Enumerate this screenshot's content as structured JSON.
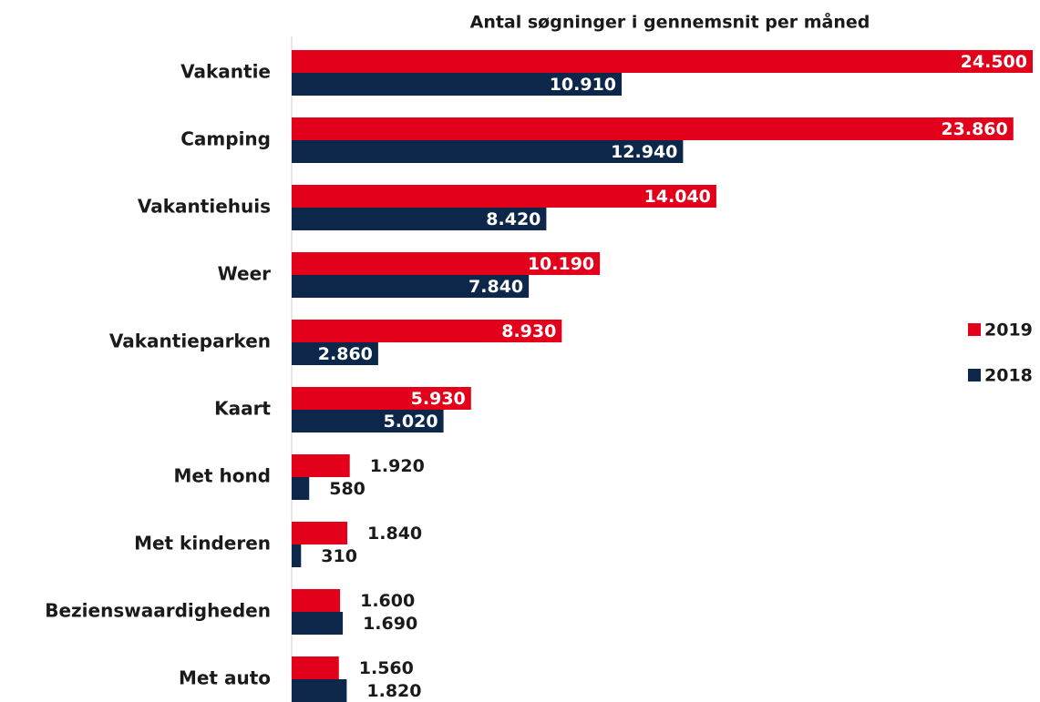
{
  "chart_data": {
    "type": "hbar",
    "title": "Antal søgninger i gennemsnit per måned",
    "categories": [
      "Vakantie",
      "Camping",
      "Vakantiehuis",
      "Weer",
      "Vakantieparken",
      "Kaart",
      "Met hond",
      "Met kinderen",
      "Bezienswaardigheden",
      "Met auto"
    ],
    "series": [
      {
        "name": "2019",
        "color": "#e2001a",
        "values": [
          24500,
          23860,
          14040,
          10190,
          8930,
          5930,
          1920,
          1840,
          1600,
          1560
        ],
        "value_labels": [
          "24.500",
          "23.860",
          "14.040",
          "10.190",
          "8.930",
          "5.930",
          "1.920",
          "1.840",
          "1.600",
          "1.560"
        ]
      },
      {
        "name": "2018",
        "color": "#0c2749",
        "values": [
          10910,
          12940,
          8420,
          7840,
          2860,
          5020,
          580,
          310,
          1690,
          1820
        ],
        "value_labels": [
          "10.910",
          "12.940",
          "8.420",
          "7.840",
          "2.860",
          "5.020",
          "580",
          "310",
          "1.690",
          "1.820"
        ]
      }
    ],
    "legend": "right"
  }
}
